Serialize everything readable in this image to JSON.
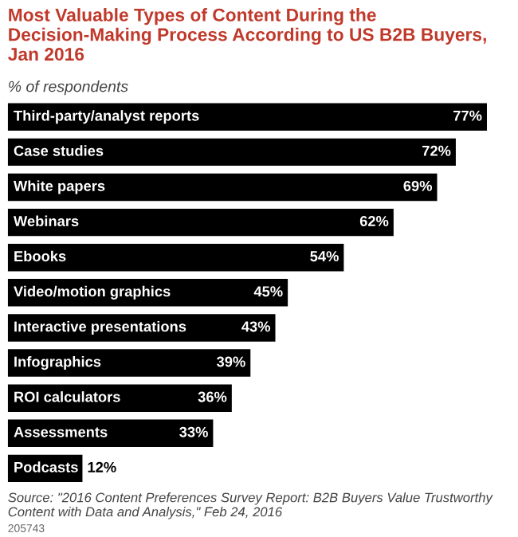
{
  "chart_data": {
    "type": "bar",
    "orientation": "horizontal",
    "title": "Most Valuable Types of Content During the Decision-Making Process According to US B2B Buyers, Jan 2016",
    "subtitle": "% of respondents",
    "categories": [
      "Third-party/analyst reports",
      "Case studies",
      "White papers",
      "Webinars",
      "Ebooks",
      "Video/motion graphics",
      "Interactive presentations",
      "Infographics",
      "ROI calculators",
      "Assessments",
      "Podcasts"
    ],
    "values": [
      77,
      72,
      69,
      62,
      54,
      45,
      43,
      39,
      36,
      33,
      12
    ],
    "value_labels": [
      "77%",
      "72%",
      "69%",
      "62%",
      "54%",
      "45%",
      "43%",
      "39%",
      "36%",
      "33%",
      "12%"
    ],
    "color": "#000000",
    "annotations": [
      "Source: \"2016 Content Preferences Survey Report: B2B Buyers Value Trustworthy Content with Data and Analysis,\" Feb 24, 2016",
      "205743"
    ]
  }
}
